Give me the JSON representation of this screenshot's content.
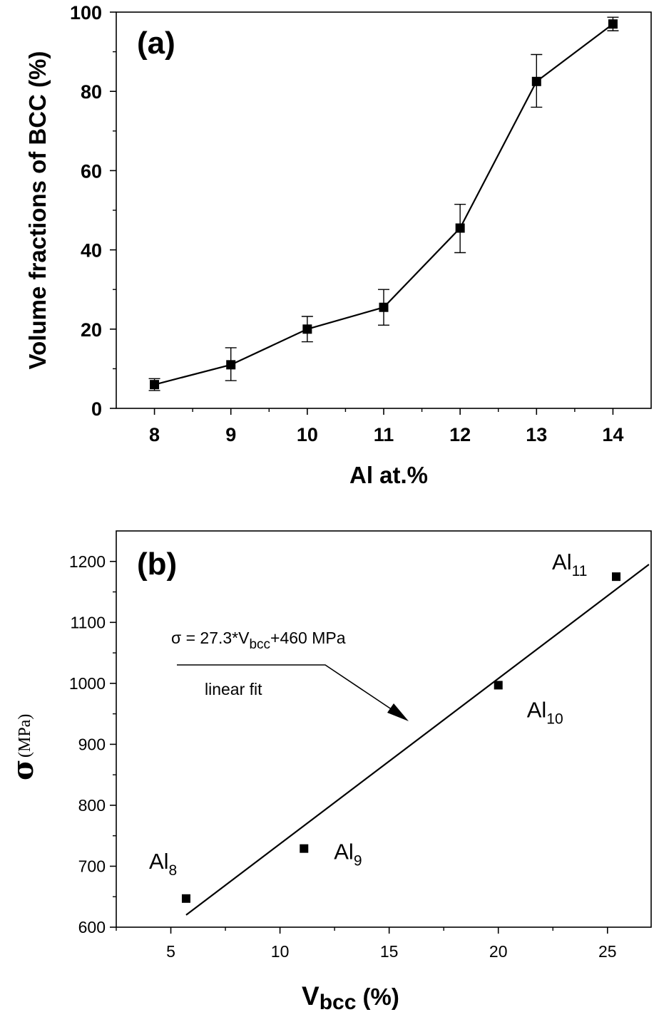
{
  "chart_data": [
    {
      "type": "line",
      "panel_label": "(a)",
      "xlabel": "Al at.%",
      "ylabel": "Volume fractions of BCC (%)",
      "xlim": [
        7.5,
        14.5
      ],
      "ylim": [
        0,
        100
      ],
      "x_ticks": [
        "8",
        "9",
        "10",
        "11",
        "12",
        "13",
        "14"
      ],
      "y_ticks": [
        "0",
        "20",
        "40",
        "60",
        "80",
        "100"
      ],
      "series": [
        {
          "x": [
            8,
            9,
            10,
            11,
            12,
            13,
            14
          ],
          "y": [
            6,
            11,
            20,
            25.5,
            45.5,
            82.5,
            97
          ],
          "err_low": [
            4.5,
            7,
            16.8,
            21,
            39.3,
            76,
            95.3
          ],
          "err_high": [
            7.5,
            15.3,
            23.2,
            30,
            51.5,
            89.3,
            98.7
          ]
        }
      ],
      "grid": false
    },
    {
      "type": "scatter",
      "panel_label": "(b)",
      "xlabel_main": "V",
      "xlabel_sub": "bcc",
      "xlabel_suffix": " (%)",
      "ylabel_symbol": "σ",
      "ylabel_unit": "(MPa)",
      "xlim": [
        2.5,
        27
      ],
      "ylim": [
        600,
        1250
      ],
      "x_ticks": [
        "5",
        "10",
        "15",
        "20",
        "25"
      ],
      "y_ticks": [
        "600",
        "700",
        "800",
        "900",
        "1000",
        "1100",
        "1200"
      ],
      "points": [
        {
          "x": 5.7,
          "y": 647,
          "label_main": "Al",
          "label_sub": "8"
        },
        {
          "x": 11.1,
          "y": 729,
          "label_main": "Al",
          "label_sub": "9"
        },
        {
          "x": 20.0,
          "y": 997,
          "label_main": "Al",
          "label_sub": "10"
        },
        {
          "x": 25.4,
          "y": 1175,
          "label_main": "Al",
          "label_sub": "11"
        }
      ],
      "fit_line": {
        "x0": 5.7,
        "y0": 620,
        "x1": 26.9,
        "y1": 1195
      },
      "equation": {
        "prefix": "σ = 27.3*V",
        "sub": "bcc",
        "suffix": "+460 MPa"
      },
      "fit_label": "linear fit",
      "grid": false
    }
  ]
}
